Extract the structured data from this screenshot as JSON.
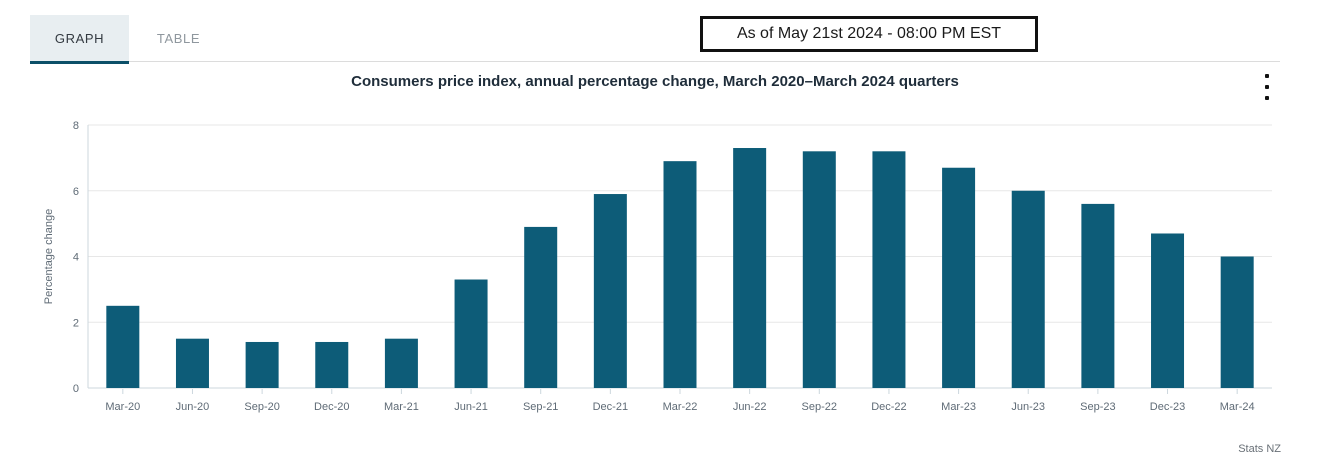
{
  "tabs": {
    "graph_label": "GRAPH",
    "table_label": "TABLE"
  },
  "banner": {
    "text": "As of May 21st 2024 - 08:00 PM EST"
  },
  "header": {
    "menu_icon": "vertical-kebab-menu"
  },
  "attribution": {
    "text": "Stats NZ"
  },
  "colors": {
    "bar": "#0d5c78",
    "active_tab_underline": "#0b4f68",
    "active_tab_bg": "#e8eef1",
    "grid_line": "#e7e7e7",
    "axis_line": "#ccd7de",
    "muted_text": "#5f6b76"
  },
  "chart_data": {
    "type": "bar",
    "title": "Consumers price index, annual percentage change, March 2020–March 2024 quarters",
    "ylabel": "Percentage change",
    "xlabel": "",
    "categories": [
      "Mar-20",
      "Jun-20",
      "Sep-20",
      "Dec-20",
      "Mar-21",
      "Jun-21",
      "Sep-21",
      "Dec-21",
      "Mar-22",
      "Jun-22",
      "Sep-22",
      "Dec-22",
      "Mar-23",
      "Jun-23",
      "Sep-23",
      "Dec-23",
      "Mar-24"
    ],
    "values": [
      2.5,
      1.5,
      1.4,
      1.4,
      1.5,
      3.3,
      4.9,
      5.9,
      6.9,
      7.3,
      7.2,
      7.2,
      6.7,
      6.0,
      5.6,
      4.7,
      4.0
    ],
    "ylim": [
      0,
      8
    ],
    "yticks": [
      0,
      2,
      4,
      6,
      8
    ],
    "grid": true,
    "legend": false
  }
}
